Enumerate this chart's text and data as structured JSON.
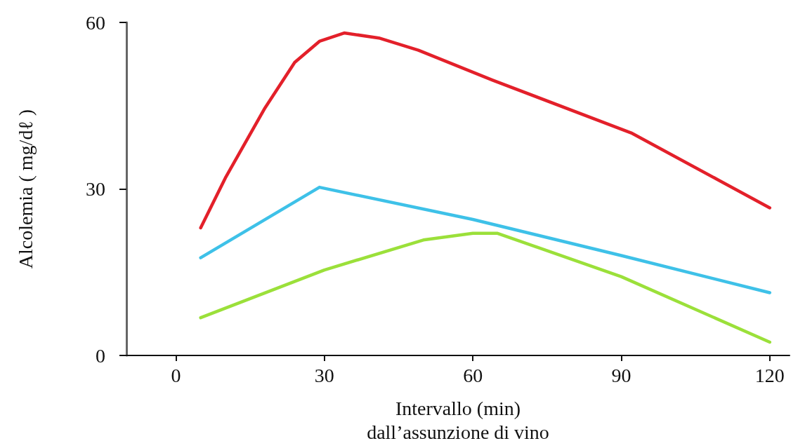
{
  "chart_data": {
    "type": "line",
    "xlabel": "Intervallo (min)\ndall’assunzione di vino",
    "ylabel": "Alcolemia ( mg/dℓ )",
    "xlim": [
      -10,
      124
    ],
    "xticks": [
      0,
      30,
      60,
      90,
      120
    ],
    "ylim": [
      0,
      60
    ],
    "yticks": [
      0,
      30,
      60
    ],
    "grid": false,
    "marker": "none",
    "line_style": "solid",
    "series": [
      {
        "color": "#e3202a",
        "x": [
          5,
          10,
          18,
          24,
          29,
          34,
          41,
          49,
          64,
          92,
          120
        ],
        "values": [
          23,
          32,
          44.6,
          52.8,
          56.6,
          58.1,
          57.2,
          55,
          49.6,
          40.1,
          26.6
        ]
      },
      {
        "color": "#3ec1e8",
        "x": [
          5,
          29,
          60,
          90,
          120
        ],
        "values": [
          17.6,
          30.3,
          24.5,
          18,
          11.3
        ]
      },
      {
        "color": "#9be03a",
        "x": [
          5,
          30,
          50,
          60,
          65,
          90,
          120
        ],
        "values": [
          6.8,
          15.4,
          20.8,
          22,
          22,
          14.2,
          2.4
        ]
      }
    ]
  }
}
